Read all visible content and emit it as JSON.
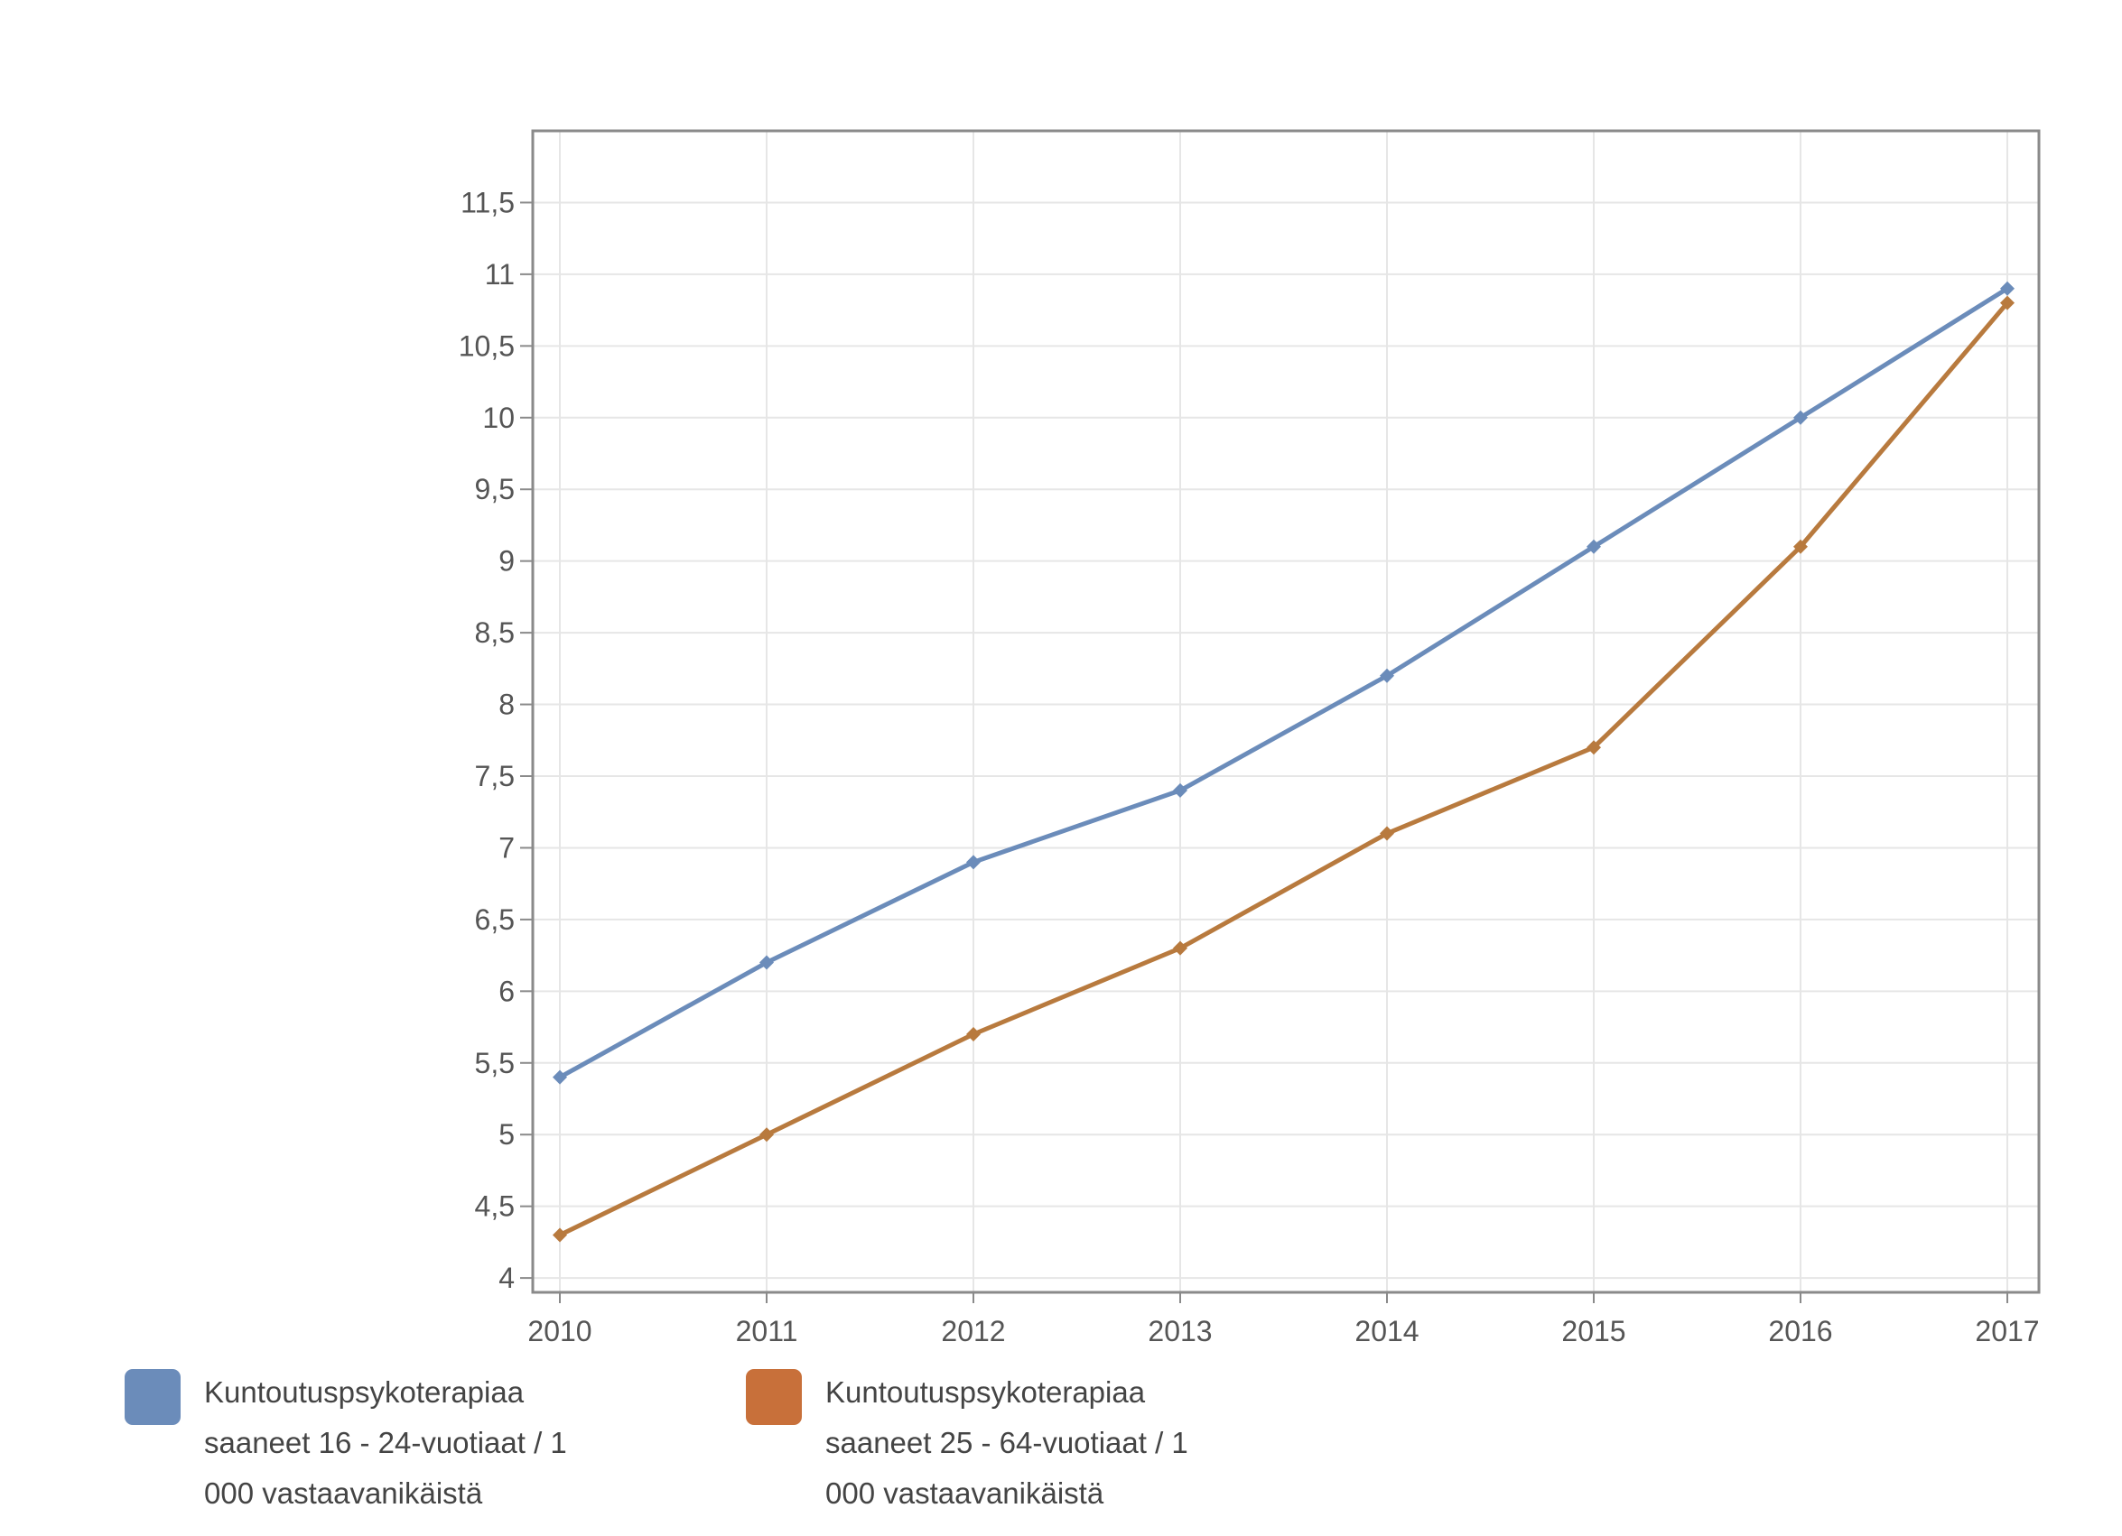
{
  "chart_data": {
    "type": "line",
    "x": [
      "2010",
      "2011",
      "2012",
      "2013",
      "2014",
      "2015",
      "2016",
      "2017"
    ],
    "series": [
      {
        "name": "Kuntoutuspsykoterapiaa saaneet 16 - 24-vuotiaat / 1 000 vastaavanikäistä",
        "color": "#6b8cba",
        "values": [
          5.4,
          6.2,
          6.9,
          7.4,
          8.2,
          9.1,
          10.0,
          10.9
        ]
      },
      {
        "name": "Kuntoutuspsykoterapiaa saaneet 25 - 64-vuotiaat / 1 000 vastaavanikäistä",
        "color": "#b87a3e",
        "values": [
          4.3,
          5.0,
          5.7,
          6.3,
          7.1,
          7.7,
          9.1,
          10.8
        ]
      }
    ],
    "ylim": [
      3.9,
      12.0
    ],
    "yticks": [
      {
        "value": 4,
        "label": "4"
      },
      {
        "value": 4.5,
        "label": "4,5"
      },
      {
        "value": 5,
        "label": "5"
      },
      {
        "value": 5.5,
        "label": "5,5"
      },
      {
        "value": 6,
        "label": "6"
      },
      {
        "value": 6.5,
        "label": "6,5"
      },
      {
        "value": 7,
        "label": "7"
      },
      {
        "value": 7.5,
        "label": "7,5"
      },
      {
        "value": 8,
        "label": "8"
      },
      {
        "value": 8.5,
        "label": "8,5"
      },
      {
        "value": 9,
        "label": "9"
      },
      {
        "value": 9.5,
        "label": "9,5"
      },
      {
        "value": 10,
        "label": "10"
      },
      {
        "value": 10.5,
        "label": "10,5"
      },
      {
        "value": 11,
        "label": "11"
      },
      {
        "value": 11.5,
        "label": "11,5"
      }
    ],
    "grid": true,
    "legend": "bottom",
    "legend_swatches": [
      "#6b8cba",
      "#c8703a"
    ]
  }
}
